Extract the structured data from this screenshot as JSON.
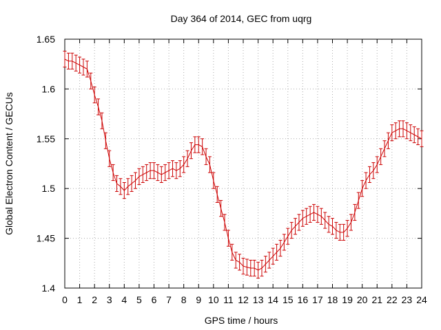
{
  "chart_data": {
    "type": "line",
    "title": "Day 364 of 2014, GEC from uqrg",
    "xlabel": "GPS time / hours",
    "ylabel": "Global Electron Content / GECUs",
    "xlim": [
      0,
      24
    ],
    "ylim": [
      1.4,
      1.65
    ],
    "x_ticks": [
      "0",
      "1",
      "2",
      "3",
      "4",
      "5",
      "6",
      "7",
      "8",
      "9",
      "10",
      "11",
      "12",
      "13",
      "14",
      "15",
      "16",
      "17",
      "18",
      "19",
      "20",
      "21",
      "22",
      "23",
      "24"
    ],
    "y_ticks": [
      "1.4",
      "1.45",
      "1.5",
      "1.55",
      "1.6",
      "1.65"
    ],
    "grid": true,
    "series_color": "#cc0000",
    "error": 0.008,
    "series": [
      {
        "x": [
          0,
          0.25,
          0.5,
          0.75,
          1,
          1.25,
          1.5,
          1.75,
          2,
          2.25,
          2.5,
          2.75,
          3,
          3.25,
          3.5,
          3.75,
          4,
          4.25,
          4.5,
          4.75,
          5,
          5.25,
          5.5,
          5.75,
          6,
          6.25,
          6.5,
          6.75,
          7,
          7.25,
          7.5,
          7.75,
          8,
          8.25,
          8.5,
          8.75,
          9,
          9.25,
          9.5,
          9.75,
          10,
          10.25,
          10.5,
          10.75,
          11,
          11.25,
          11.5,
          11.75,
          12,
          12.25,
          12.5,
          12.75,
          13,
          13.25,
          13.5,
          13.75,
          14,
          14.25,
          14.5,
          14.75,
          15,
          15.25,
          15.5,
          15.75,
          16,
          16.25,
          16.5,
          16.75,
          17,
          17.25,
          17.5,
          17.75,
          18,
          18.25,
          18.5,
          18.75,
          19,
          19.25,
          19.5,
          19.75,
          20,
          20.25,
          20.5,
          20.75,
          21,
          21.25,
          21.5,
          21.75,
          22,
          22.25,
          22.5,
          22.75,
          23,
          23.25,
          23.5,
          23.75,
          24
        ],
        "y": [
          1.63,
          1.628,
          1.628,
          1.626,
          1.624,
          1.622,
          1.62,
          1.608,
          1.594,
          1.582,
          1.568,
          1.548,
          1.53,
          1.516,
          1.505,
          1.502,
          1.498,
          1.502,
          1.505,
          1.508,
          1.512,
          1.514,
          1.516,
          1.518,
          1.518,
          1.516,
          1.514,
          1.516,
          1.518,
          1.52,
          1.518,
          1.52,
          1.524,
          1.53,
          1.538,
          1.544,
          1.544,
          1.542,
          1.532,
          1.524,
          1.508,
          1.494,
          1.48,
          1.466,
          1.45,
          1.436,
          1.428,
          1.426,
          1.422,
          1.421,
          1.42,
          1.42,
          1.418,
          1.42,
          1.424,
          1.428,
          1.432,
          1.436,
          1.44,
          1.446,
          1.452,
          1.458,
          1.462,
          1.466,
          1.47,
          1.472,
          1.474,
          1.476,
          1.474,
          1.472,
          1.468,
          1.464,
          1.462,
          1.458,
          1.456,
          1.456,
          1.46,
          1.466,
          1.476,
          1.488,
          1.5,
          1.508,
          1.514,
          1.518,
          1.524,
          1.532,
          1.54,
          1.548,
          1.556,
          1.558,
          1.56,
          1.56,
          1.558,
          1.556,
          1.554,
          1.552,
          1.55
        ]
      }
    ]
  }
}
